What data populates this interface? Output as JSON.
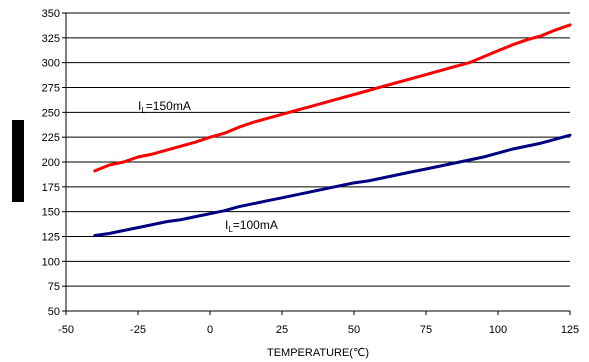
{
  "chart_data": {
    "type": "line",
    "xlabel": "TEMPERATURE(℃)",
    "ylabel": "",
    "xlim": [
      -50,
      125
    ],
    "ylim": [
      50,
      350
    ],
    "xticks": [
      -50,
      -25,
      0,
      25,
      50,
      75,
      100,
      125
    ],
    "yticks": [
      50,
      75,
      100,
      125,
      150,
      175,
      200,
      225,
      250,
      275,
      300,
      325,
      350
    ],
    "grid": "horizontal",
    "series": [
      {
        "color": "#ff0000",
        "x": [
          -40,
          -35,
          -30,
          -25,
          -20,
          -15,
          -10,
          -5,
          0,
          5,
          10,
          15,
          20,
          25,
          30,
          35,
          40,
          45,
          50,
          55,
          60,
          65,
          70,
          75,
          80,
          85,
          90,
          95,
          100,
          105,
          110,
          115,
          120,
          125
        ],
        "y": [
          191,
          197,
          200,
          205,
          208,
          212,
          216,
          220,
          225,
          229,
          235,
          240,
          244,
          248,
          252,
          256,
          260,
          264,
          268,
          272,
          276,
          280,
          284,
          288,
          292,
          296,
          300,
          306,
          312,
          318,
          323,
          327,
          333,
          338
        ]
      },
      {
        "color": "#000080",
        "x": [
          -40,
          -35,
          -30,
          -25,
          -20,
          -15,
          -10,
          -5,
          0,
          5,
          10,
          15,
          20,
          25,
          30,
          35,
          40,
          45,
          50,
          55,
          60,
          65,
          70,
          75,
          80,
          85,
          90,
          95,
          100,
          105,
          110,
          115,
          120,
          125
        ],
        "y": [
          126,
          128,
          131,
          134,
          137,
          140,
          142,
          145,
          148,
          151,
          155,
          158,
          161,
          164,
          167,
          170,
          173,
          176,
          179,
          181,
          184,
          187,
          190,
          193,
          196,
          199,
          202,
          205,
          209,
          213,
          216,
          219,
          223,
          227
        ]
      }
    ]
  },
  "annotations": {
    "red": {
      "main": "I",
      "sub": "L",
      "rest": "=150mA"
    },
    "blue": {
      "main": "I",
      "sub": "L",
      "rest": "=100mA"
    }
  }
}
